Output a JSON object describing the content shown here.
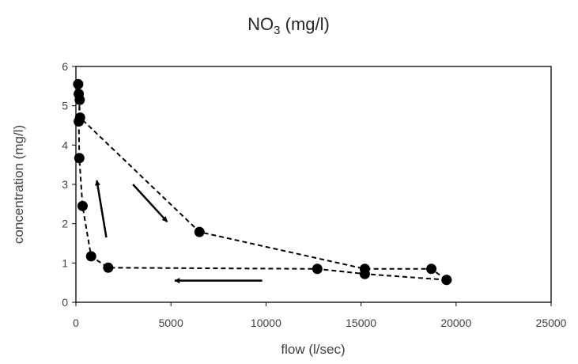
{
  "chart_data": {
    "type": "scatter",
    "title_main": "NO",
    "title_sub": "3",
    "title_rest": " (mg/l)",
    "xlabel": "flow (l/sec)",
    "ylabel": "concentration (mg/l)",
    "xlim": [
      0,
      25000
    ],
    "ylim": [
      0,
      6
    ],
    "x_ticks": [
      0,
      5000,
      10000,
      15000,
      20000,
      25000
    ],
    "y_ticks": [
      0,
      1,
      2,
      3,
      4,
      5,
      6
    ],
    "grid": false,
    "legend": "none",
    "marker_color": "#000000",
    "line_style": "dashed",
    "series": [
      {
        "points": [
          {
            "x": 19500,
            "y": 0.57
          },
          {
            "x": 15200,
            "y": 0.72
          },
          {
            "x": 12700,
            "y": 0.85
          },
          {
            "x": 1700,
            "y": 0.88
          },
          {
            "x": 800,
            "y": 1.17
          },
          {
            "x": 350,
            "y": 2.45
          },
          {
            "x": 180,
            "y": 3.67
          },
          {
            "x": 150,
            "y": 4.6
          },
          {
            "x": 200,
            "y": 5.15
          },
          {
            "x": 150,
            "y": 5.3
          },
          {
            "x": 120,
            "y": 5.55
          },
          {
            "x": 220,
            "y": 4.7
          },
          {
            "x": 6500,
            "y": 1.79
          },
          {
            "x": 15200,
            "y": 0.85
          },
          {
            "x": 18700,
            "y": 0.85
          },
          {
            "x": 19500,
            "y": 0.57
          }
        ]
      }
    ],
    "annotations": [
      {
        "type": "arrow",
        "from": [
          1600,
          1.65
        ],
        "to": [
          1100,
          3.1
        ]
      },
      {
        "type": "arrow",
        "from": [
          3000,
          3.0
        ],
        "to": [
          4800,
          2.05
        ]
      },
      {
        "type": "arrow",
        "from": [
          9800,
          0.55
        ],
        "to": [
          5200,
          0.55
        ]
      }
    ]
  }
}
